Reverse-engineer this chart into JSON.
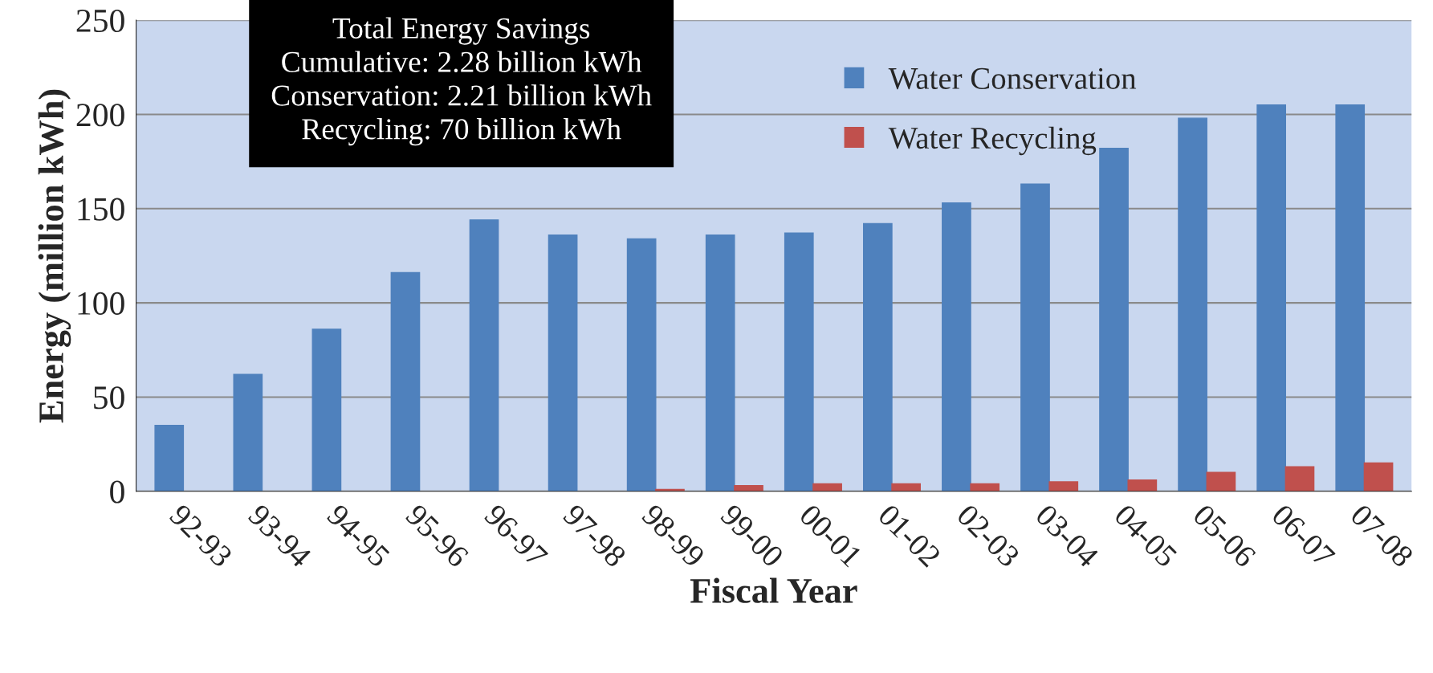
{
  "chart_data": {
    "type": "bar",
    "xlabel": "Fiscal Year",
    "ylabel": "Energy (million kWh)",
    "categories": [
      "92-93",
      "93-94",
      "94-95",
      "95-96",
      "96-97",
      "97-98",
      "98-99",
      "99-00",
      "00-01",
      "01-02",
      "02-03",
      "03-04",
      "04-05",
      "05-06",
      "06-07",
      "07-08"
    ],
    "series": [
      {
        "name": "Water Conservation",
        "color": "#4f81bd",
        "values": [
          35,
          62,
          86,
          116,
          144,
          136,
          134,
          136,
          137,
          142,
          153,
          163,
          182,
          198,
          205,
          205
        ]
      },
      {
        "name": "Water Recycling",
        "color": "#c0504d",
        "values": [
          null,
          null,
          null,
          null,
          null,
          null,
          1,
          3,
          4,
          4,
          4,
          5,
          6,
          10,
          13,
          15
        ]
      }
    ],
    "ylim": [
      0,
      250
    ],
    "yticks": [
      0,
      50,
      100,
      150,
      200,
      250
    ],
    "grid": "y",
    "legend": "top",
    "annotations": [
      "Total Energy Savings",
      "Cumulative: 2.28 billion kWh",
      "Conservation: 2.21 billion kWh",
      "Recycling: 70 billion kWh"
    ]
  }
}
